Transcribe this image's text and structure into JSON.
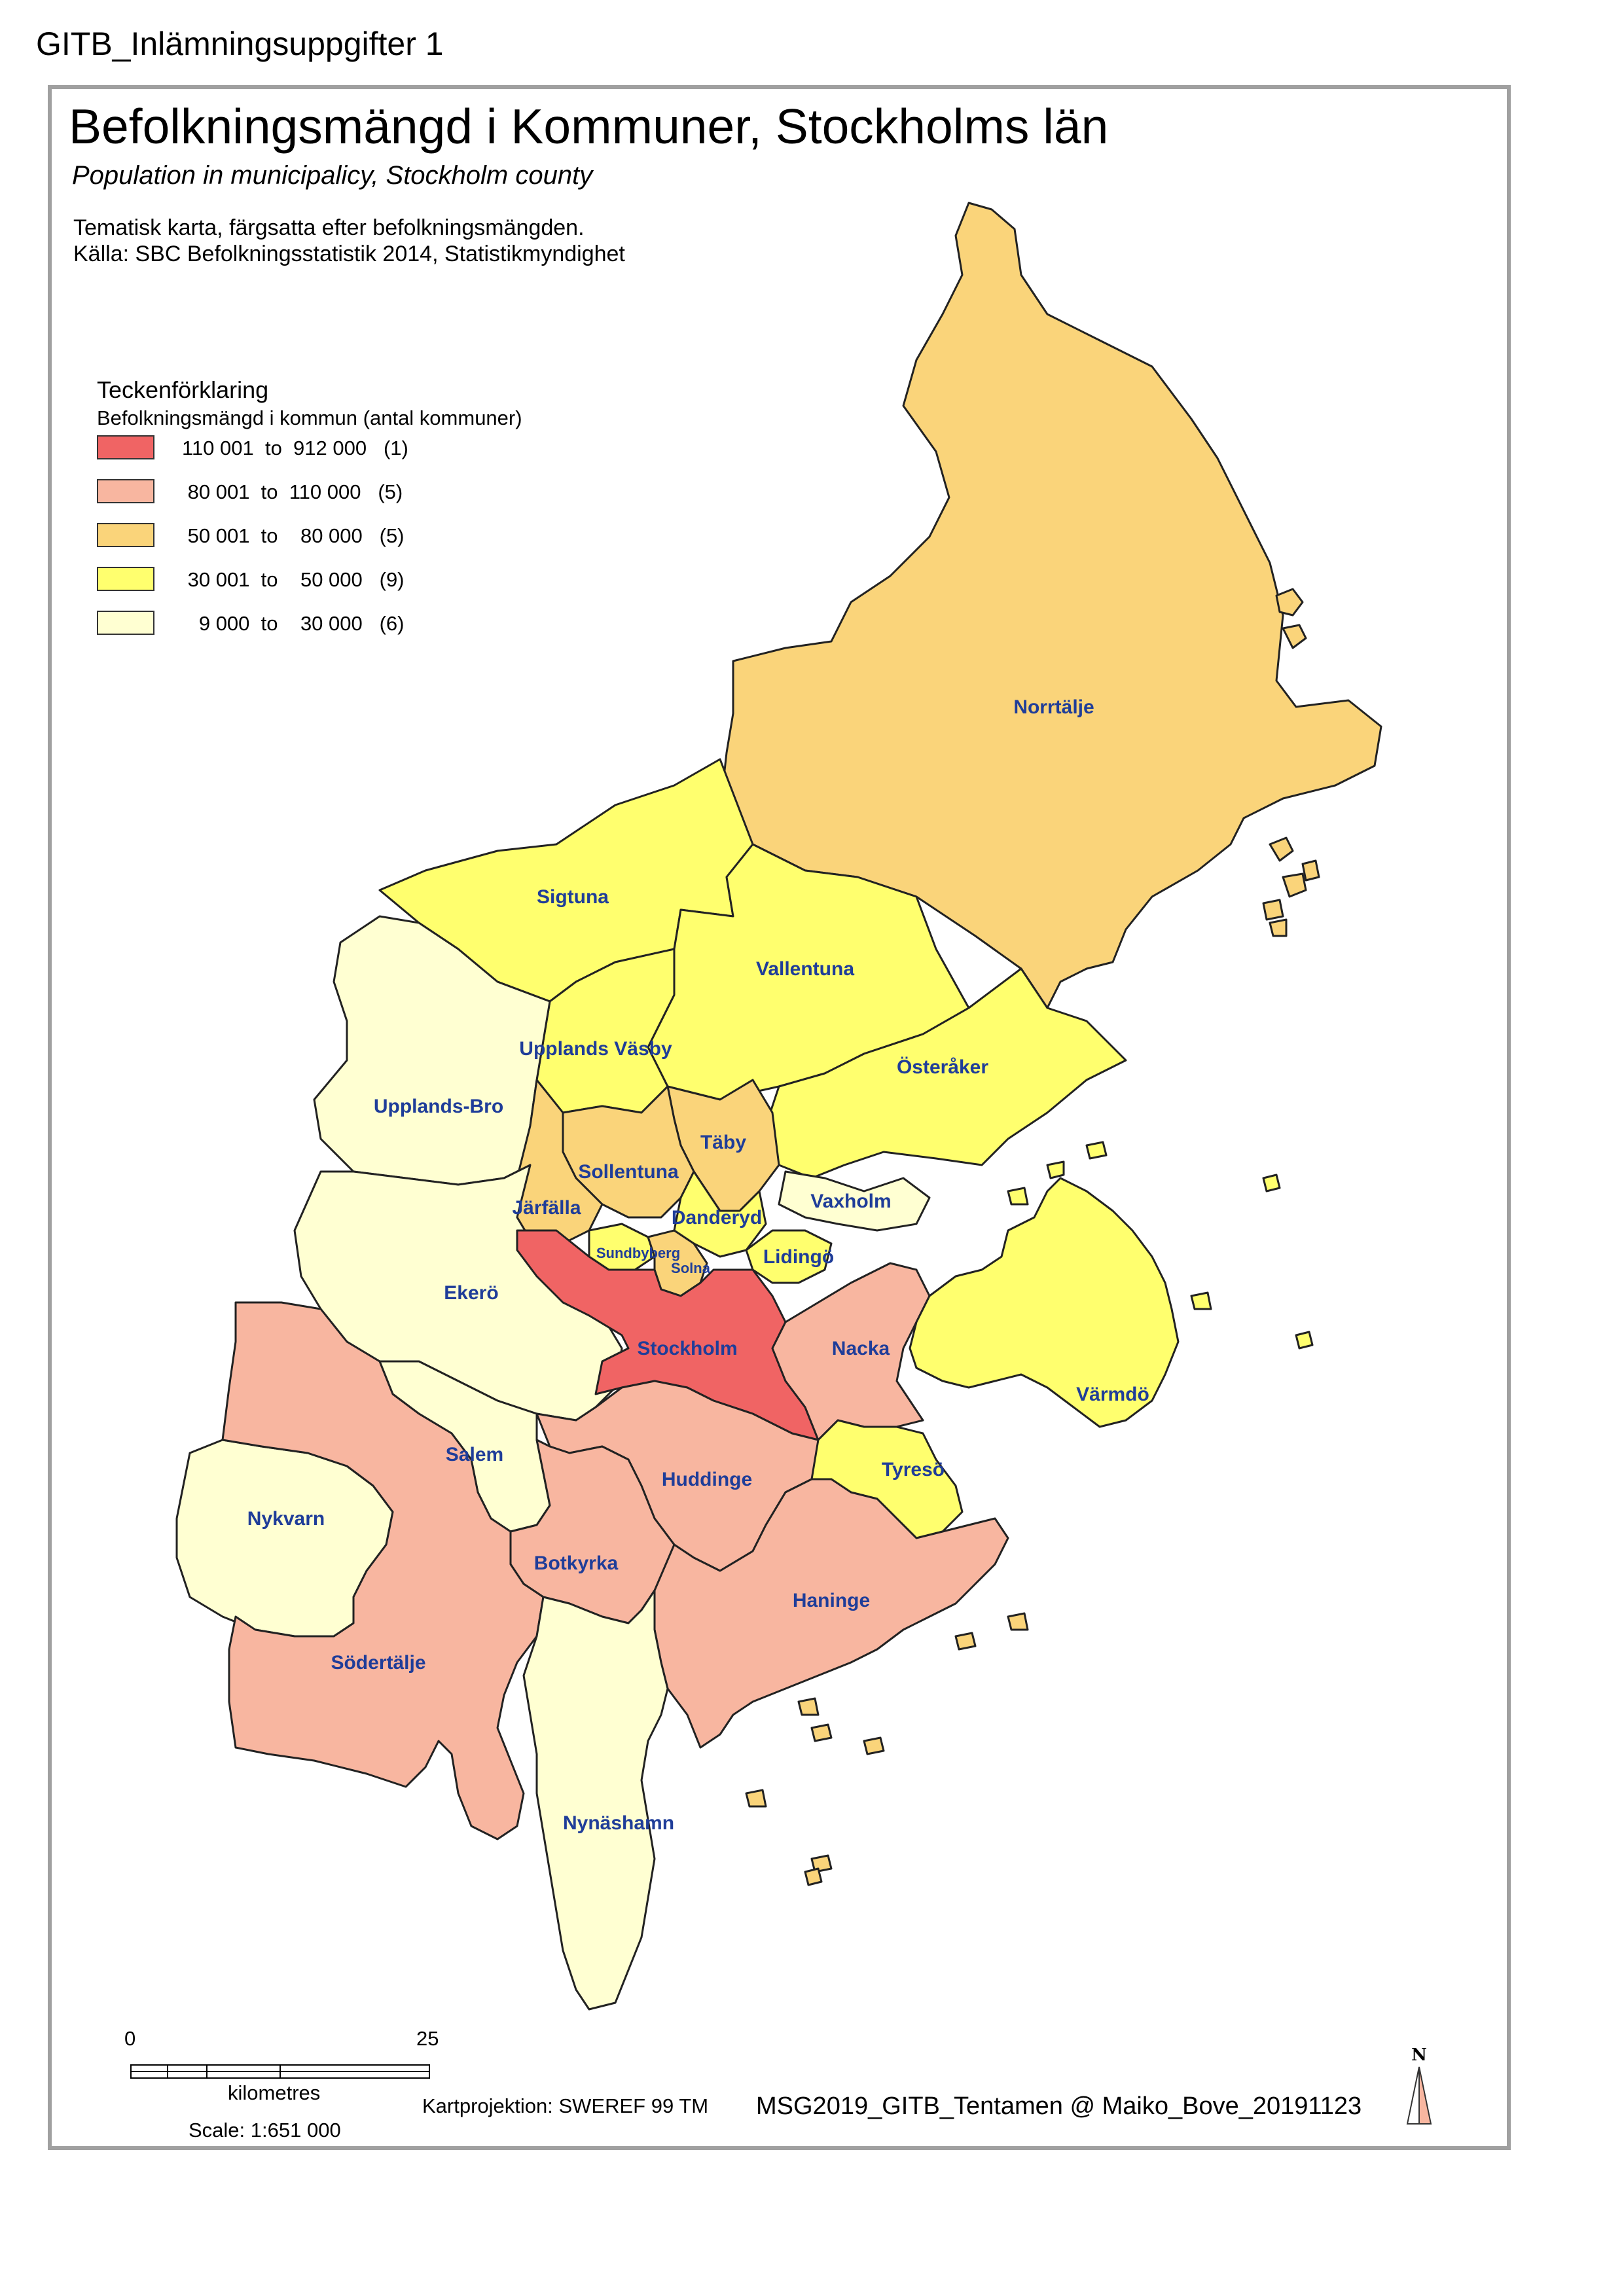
{
  "header": "GITB_Inlämningsuppgifter 1",
  "title": "Befolkningsmängd i Kommuner, Stockholms län",
  "subtitle": "Population in municipalicy, Stockholm county",
  "description": [
    "Tematisk karta, färgsatta efter befolkningsmängden.",
    "Källa: SBC Befolkningsstatistik 2014, Statistikmyndighet"
  ],
  "legend": {
    "title": "Teckenförklaring",
    "subtitle": "Befolkningsmängd  i kommun (antal kommuner)",
    "classes": [
      {
        "label": "110 001  to  912 000   (1)",
        "color": "#f06464"
      },
      {
        "label": " 80 001  to  110 000   (5)",
        "color": "#f8b6a0"
      },
      {
        "label": " 50 001  to    80 000   (5)",
        "color": "#fad47a"
      },
      {
        "label": " 30 001  to    50 000   (9)",
        "color": "#ffff6e"
      },
      {
        "label": "   9 000  to    30 000   (6)",
        "color": "#ffffd2"
      }
    ]
  },
  "municipalities": [
    {
      "name": "Norrtälje",
      "class": 2
    },
    {
      "name": "Sigtuna",
      "class": 3
    },
    {
      "name": "Vallentuna",
      "class": 3
    },
    {
      "name": "Upplands Väsby",
      "class": 3
    },
    {
      "name": "Österåker",
      "class": 3
    },
    {
      "name": "Upplands-Bro",
      "class": 4
    },
    {
      "name": "Täby",
      "class": 2
    },
    {
      "name": "Sollentuna",
      "class": 2
    },
    {
      "name": "Järfälla",
      "class": 2
    },
    {
      "name": "Danderyd",
      "class": 3
    },
    {
      "name": "Vaxholm",
      "class": 4
    },
    {
      "name": "Sundbyberg",
      "class": 3
    },
    {
      "name": "Solna",
      "class": 2
    },
    {
      "name": "Lidingö",
      "class": 3
    },
    {
      "name": "Ekerö",
      "class": 4
    },
    {
      "name": "Stockholm",
      "class": 0
    },
    {
      "name": "Nacka",
      "class": 1
    },
    {
      "name": "Värmdö",
      "class": 3
    },
    {
      "name": "Salem",
      "class": 4
    },
    {
      "name": "Huddinge",
      "class": 1
    },
    {
      "name": "Tyresö",
      "class": 3
    },
    {
      "name": "Nykvarn",
      "class": 4
    },
    {
      "name": "Botkyrka",
      "class": 1
    },
    {
      "name": "Haninge",
      "class": 1
    },
    {
      "name": "Södertälje",
      "class": 1
    },
    {
      "name": "Nynäshamn",
      "class": 4
    }
  ],
  "scalebar": {
    "start": "0",
    "end": "25",
    "unit": "kilometres",
    "scale": "Scale: 1:651 000"
  },
  "projection": "Kartprojektion: SWEREF 99 TM",
  "credit": "MSG2019_GITB_Tentamen @ Maiko_Bove_20191123",
  "north_arrow": "N"
}
